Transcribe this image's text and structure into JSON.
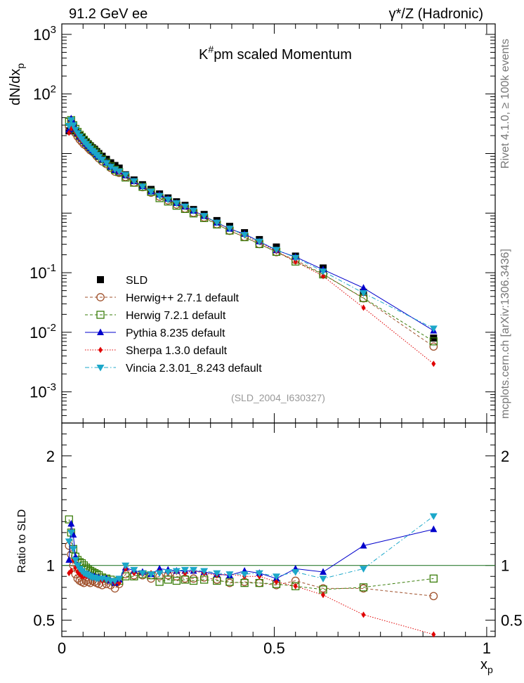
{
  "header": {
    "left": "91.2 GeV ee",
    "right": "γ*/Z (Hadronic)"
  },
  "side_text": {
    "top": "Rivet 4.1.0, ≥ 100k events",
    "bottom": "mcplots.cern.ch [arXiv:1306.3436]"
  },
  "chart_data": {
    "type": "scatter",
    "title": "K#pm scaled Momentum",
    "analysis_id": "(SLD_2004_I630327)",
    "xlabel": "x_p",
    "ylabel_main": "dN/dx_p",
    "ylabel_ratio": "Ratio to SLD",
    "xlim": [
      0,
      1.02
    ],
    "ylim_main": [
      0.0003,
      1500
    ],
    "ylim_ratio": [
      0.35,
      2.3
    ],
    "x_ticks": [
      "0",
      "0.5",
      "1"
    ],
    "y_ticks_main": [
      "10^-3",
      "10^-2",
      "10^-1",
      "1",
      "10",
      "10^2",
      "10^3"
    ],
    "y_ticks_ratio": [
      "0.5",
      "1",
      "2"
    ],
    "x": [
      0.017,
      0.022,
      0.027,
      0.032,
      0.037,
      0.042,
      0.047,
      0.052,
      0.057,
      0.062,
      0.067,
      0.072,
      0.077,
      0.082,
      0.087,
      0.095,
      0.105,
      0.115,
      0.125,
      0.135,
      0.15,
      0.17,
      0.19,
      0.21,
      0.23,
      0.25,
      0.27,
      0.29,
      0.31,
      0.335,
      0.365,
      0.395,
      0.43,
      0.465,
      0.505,
      0.55,
      0.615,
      0.71,
      0.875
    ],
    "series": [
      {
        "name": "SLD",
        "color": "#000000",
        "marker": "square-filled",
        "line": "none",
        "values": [
          24,
          28,
          26,
          24,
          22,
          20,
          18.5,
          17,
          15.8,
          14.6,
          13.5,
          12.5,
          11.8,
          10.8,
          10.0,
          9.0,
          8.0,
          7.0,
          6.3,
          5.7,
          4.4,
          3.6,
          3.0,
          2.5,
          2.1,
          1.8,
          1.55,
          1.35,
          1.15,
          0.95,
          0.75,
          0.6,
          0.47,
          0.36,
          0.27,
          0.19,
          0.12,
          0.047,
          0.008
        ]
      },
      {
        "name": "Herwig++ 2.7.1 default",
        "color": "#a0522d",
        "marker": "circle-open",
        "line": "dashed",
        "ratio": [
          1.18,
          1.1,
          1.0,
          0.92,
          0.88,
          0.86,
          0.85,
          0.84,
          0.86,
          0.85,
          0.84,
          0.86,
          0.85,
          0.84,
          0.83,
          0.82,
          0.83,
          0.82,
          0.79,
          0.83,
          0.92,
          0.91,
          0.91,
          0.88,
          0.9,
          0.91,
          0.9,
          0.88,
          0.88,
          0.89,
          0.87,
          0.84,
          0.85,
          0.84,
          0.82,
          0.86,
          0.79,
          0.79,
          0.72
        ]
      },
      {
        "name": "Herwig 7.2.1 default",
        "color": "#3a7d0a",
        "marker": "square-open",
        "line": "dashed",
        "ratio": [
          1.42,
          1.3,
          1.15,
          1.08,
          1.05,
          1.03,
          1.02,
          1.0,
          0.98,
          0.96,
          0.95,
          0.94,
          0.93,
          0.92,
          0.91,
          0.89,
          0.88,
          0.87,
          0.85,
          0.86,
          0.9,
          0.9,
          0.92,
          0.91,
          0.85,
          0.87,
          0.86,
          0.87,
          0.86,
          0.87,
          0.86,
          0.85,
          0.84,
          0.84,
          0.83,
          0.81,
          0.78,
          0.8,
          0.88
        ]
      },
      {
        "name": "Pythia 8.235 default",
        "color": "#0000cc",
        "marker": "triangle-up",
        "line": "solid",
        "ratio": [
          1.05,
          1.38,
          1.28,
          1.08,
          1.0,
          0.96,
          0.95,
          0.94,
          0.92,
          0.92,
          0.91,
          0.9,
          0.9,
          0.89,
          0.89,
          0.88,
          0.88,
          0.86,
          0.84,
          0.87,
          0.98,
          0.95,
          0.94,
          0.92,
          0.97,
          0.96,
          0.95,
          0.95,
          0.95,
          0.94,
          0.92,
          0.91,
          0.95,
          0.93,
          0.88,
          0.97,
          0.94,
          1.18,
          1.33
        ]
      },
      {
        "name": "Sherpa 1.3.0 default",
        "color": "#e00000",
        "marker": "diamond",
        "line": "dotted",
        "ratio": [
          0.93,
          0.95,
          1.05,
          0.98,
          0.94,
          0.92,
          0.9,
          0.9,
          0.9,
          0.9,
          0.9,
          0.89,
          0.88,
          0.88,
          0.87,
          0.86,
          0.86,
          0.85,
          0.84,
          0.84,
          0.97,
          0.93,
          0.92,
          0.93,
          0.94,
          0.93,
          0.94,
          0.93,
          0.95,
          0.93,
          0.91,
          0.92,
          0.9,
          0.9,
          0.85,
          0.81,
          0.73,
          0.55,
          0.37
        ]
      },
      {
        "name": "Vincia 2.3.01_8.243 default",
        "color": "#1ba7c9",
        "marker": "triangle-down",
        "line": "dashdot",
        "ratio": [
          1.22,
          1.3,
          1.15,
          1.05,
          1.0,
          0.97,
          0.95,
          0.93,
          0.92,
          0.91,
          0.9,
          0.89,
          0.89,
          0.88,
          0.88,
          0.88,
          0.87,
          0.86,
          0.86,
          0.88,
          1.0,
          0.96,
          0.93,
          0.92,
          0.93,
          0.94,
          0.95,
          0.96,
          0.96,
          0.95,
          0.93,
          0.92,
          0.92,
          0.93,
          0.9,
          0.94,
          0.88,
          0.97,
          1.45
        ]
      }
    ]
  }
}
